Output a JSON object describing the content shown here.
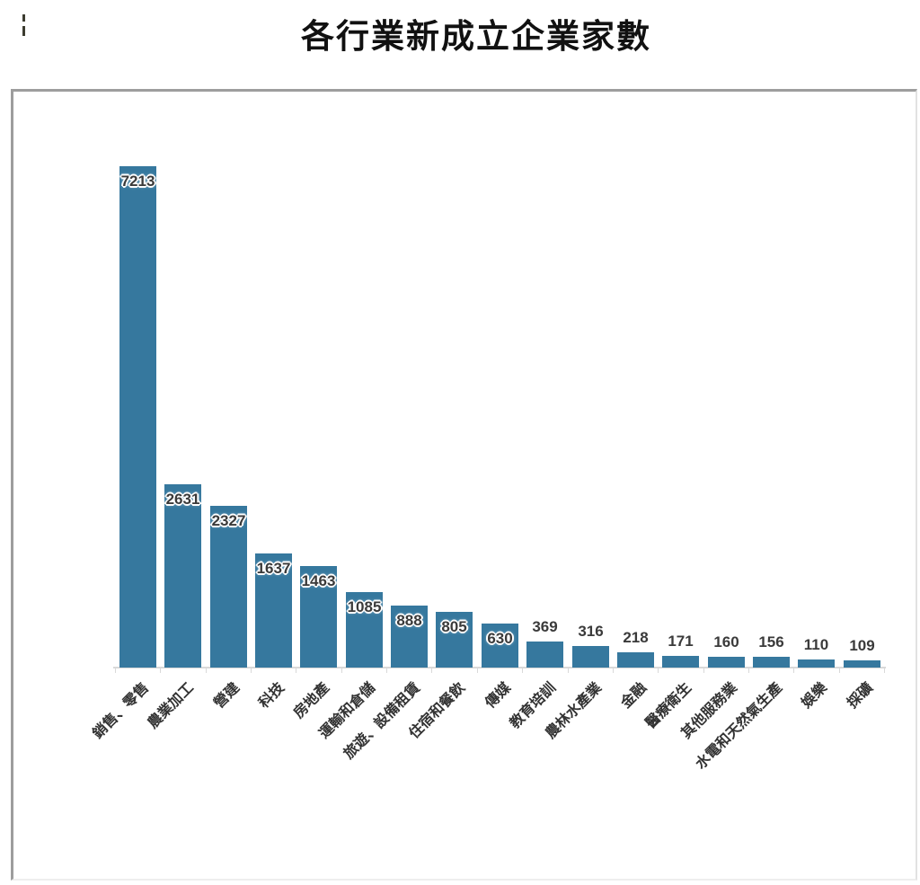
{
  "page": {
    "title": "各行業新成立企業家數"
  },
  "chart_data": {
    "type": "bar",
    "title": "各行業新成立企業家數",
    "categories": [
      "銷售、零售",
      "農業加工",
      "營建",
      "科技",
      "房地產",
      "運輸和倉儲",
      "旅遊、設備租賃",
      "住宿和餐飲",
      "傳媒",
      "教育培訓",
      "農林水產業",
      "金融",
      "醫療衛生",
      "其他服務業",
      "水電和天然氣生產",
      "娛樂",
      "採礦"
    ],
    "values": [
      7213,
      2631,
      2327,
      1637,
      1463,
      1085,
      888,
      805,
      630,
      369,
      316,
      218,
      171,
      160,
      156,
      110,
      109
    ],
    "xlabel": "",
    "ylabel": "",
    "ylim": [
      0,
      7600
    ],
    "grid": false,
    "legend": "none",
    "data_labels": "shown",
    "colors": {
      "bar": "#36789E",
      "axis_line": "#D9D9D9",
      "value_label": "#3A3A3A",
      "category_label": "#333333",
      "title": "#111111"
    }
  }
}
